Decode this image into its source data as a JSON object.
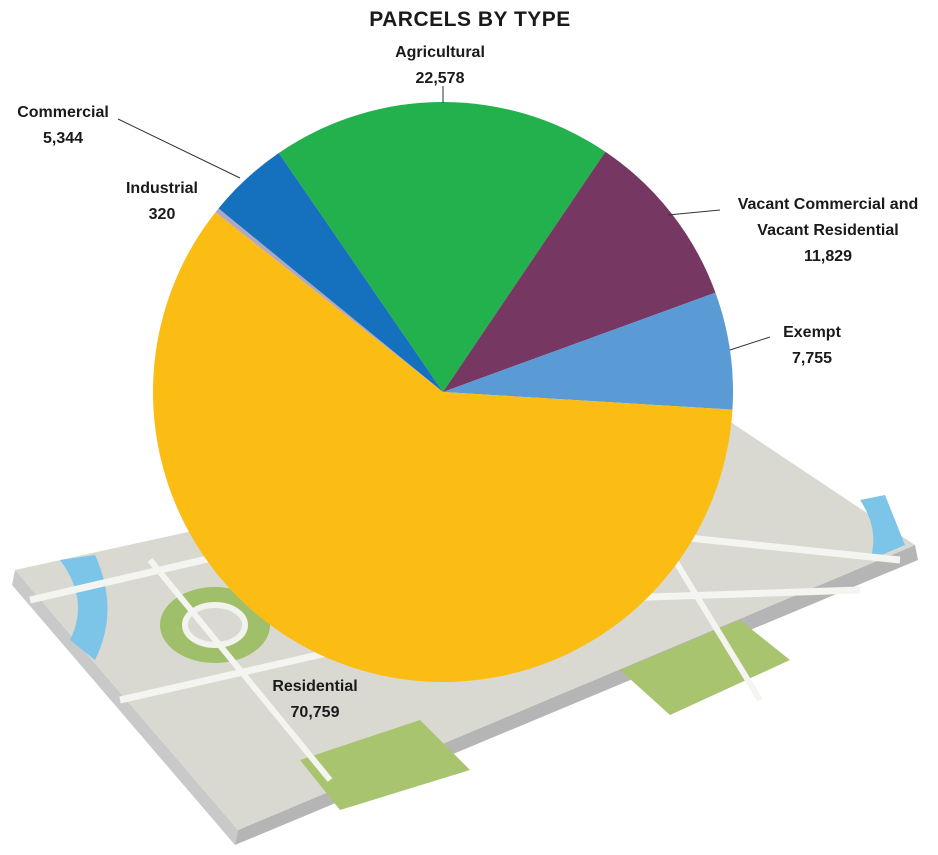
{
  "chart_data": {
    "type": "pie",
    "title": "PARCELS BY TYPE",
    "categories": [
      "Agricultural",
      "Vacant Commercial and Vacant Residential",
      "Exempt",
      "Residential",
      "Industrial",
      "Commercial"
    ],
    "values": [
      22578,
      11829,
      7755,
      70759,
      320,
      5344
    ],
    "value_labels": [
      "22,578",
      "11,829",
      "7,755",
      "70,759",
      "320",
      "5,344"
    ],
    "colors": [
      "#22b14c",
      "#763762",
      "#5b9bd5",
      "#fbbd13",
      "#b0a8c0",
      "#1570be"
    ]
  }
}
